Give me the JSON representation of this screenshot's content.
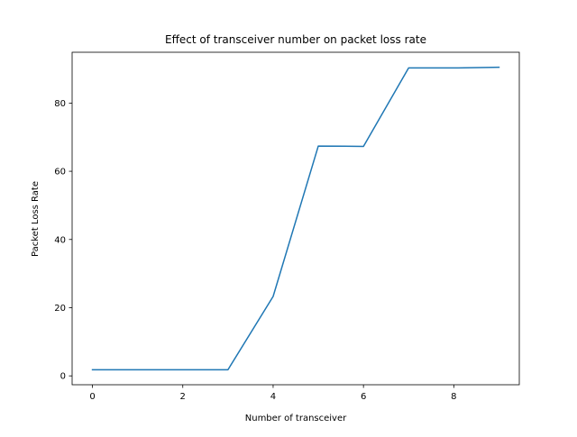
{
  "chart_data": {
    "type": "line",
    "title": "Effect of transceiver number on packet loss rate",
    "xlabel": "Number of transceiver",
    "ylabel": "Packet Loss Rate",
    "x": [
      0,
      1,
      2,
      3,
      4,
      5,
      6,
      7,
      8,
      9
    ],
    "series": [
      {
        "values": [
          1.8,
          1.8,
          1.8,
          1.8,
          23.3,
          67.4,
          67.3,
          90.3,
          90.3,
          90.5
        ],
        "color": "#1f77b4"
      }
    ],
    "xlim": [
      -0.45,
      9.45
    ],
    "ylim": [
      -2.6,
      94.9
    ],
    "xticks": [
      0,
      2,
      4,
      6,
      8
    ],
    "yticks": [
      0,
      20,
      40,
      60,
      80
    ],
    "grid": false,
    "legend": "none"
  }
}
